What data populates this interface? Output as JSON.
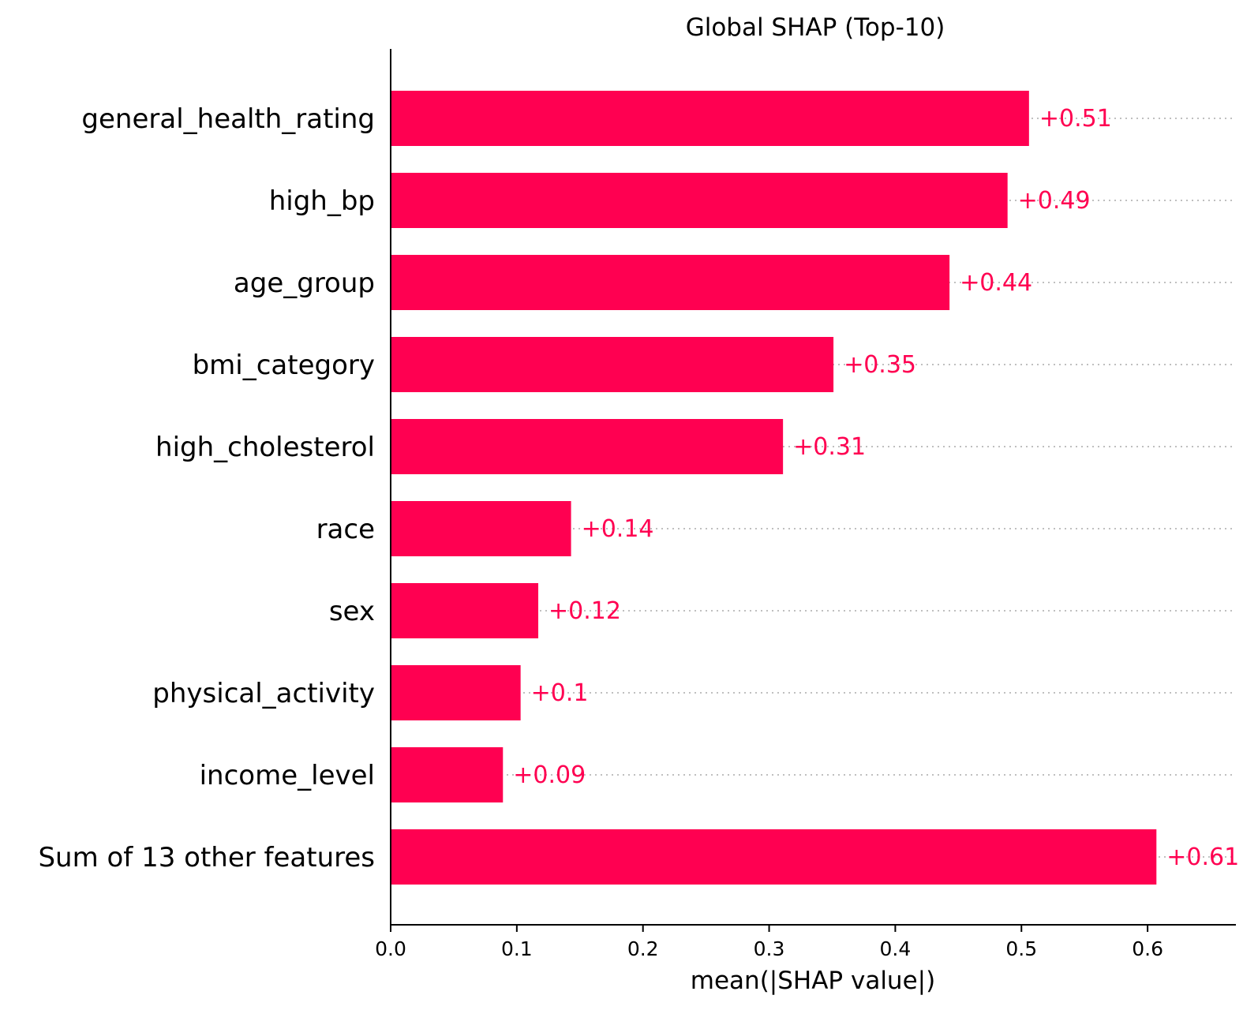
{
  "chart_data": {
    "type": "bar",
    "orientation": "horizontal",
    "title": "Global SHAP (Top-10)",
    "xlabel": "mean(|SHAP value|)",
    "ylabel": "",
    "xlim": [
      0,
      0.67
    ],
    "xticks": [
      0.0,
      0.1,
      0.2,
      0.3,
      0.4,
      0.5,
      0.6
    ],
    "xtick_labels": [
      "0.0",
      "0.1",
      "0.2",
      "0.3",
      "0.4",
      "0.5",
      "0.6"
    ],
    "categories": [
      "general_health_rating",
      "high_bp",
      "age_group",
      "bmi_category",
      "high_cholesterol",
      "race",
      "sex",
      "physical_activity",
      "income_level",
      "Sum of 13 other features"
    ],
    "values": [
      0.506,
      0.489,
      0.443,
      0.351,
      0.311,
      0.143,
      0.117,
      0.103,
      0.089,
      0.607
    ],
    "value_labels": [
      "+0.51",
      "+0.49",
      "+0.44",
      "+0.35",
      "+0.31",
      "+0.14",
      "+0.12",
      "+0.1",
      "+0.09",
      "+0.61"
    ],
    "bar_color": "#ff0051",
    "label_color": "#ff0051",
    "grid": false,
    "legend": "none"
  }
}
